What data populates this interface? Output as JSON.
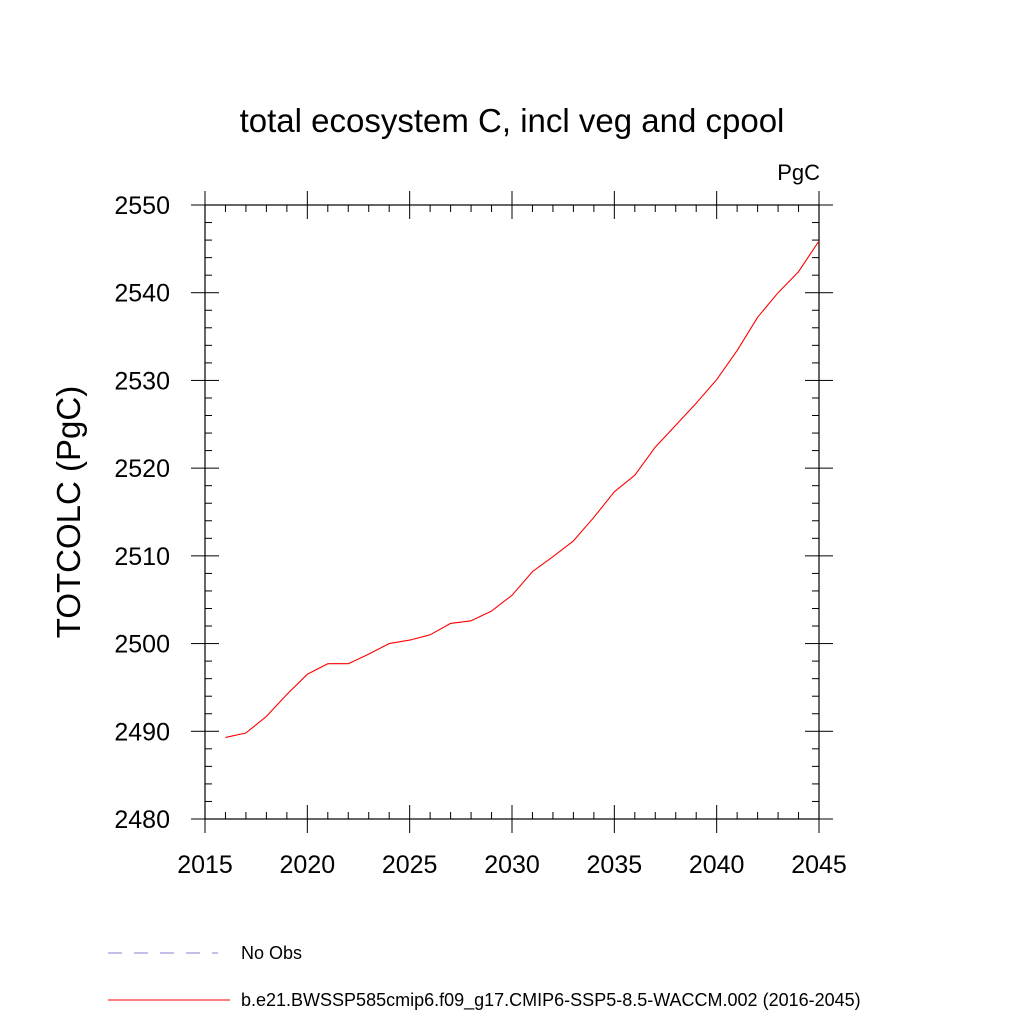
{
  "chart_data": {
    "type": "line",
    "title": "total ecosystem C, incl veg and cpool",
    "units": "PgC",
    "ylabel": "TOTCOLC  (PgC)",
    "xlabel": "",
    "xlim": [
      2015,
      2045
    ],
    "ylim": [
      2480,
      2550
    ],
    "xticks": [
      2015,
      2020,
      2025,
      2030,
      2035,
      2040,
      2045
    ],
    "yticks": [
      2480,
      2490,
      2500,
      2510,
      2520,
      2530,
      2540,
      2550
    ],
    "x": [
      2016,
      2017,
      2018,
      2019,
      2020,
      2021,
      2022,
      2023,
      2024,
      2025,
      2026,
      2027,
      2028,
      2029,
      2030,
      2031,
      2032,
      2033,
      2034,
      2035,
      2036,
      2037,
      2038,
      2039,
      2040,
      2041,
      2042,
      2043,
      2044,
      2045
    ],
    "series": [
      {
        "name": "b.e21.BWSSP585cmip6.f09_g17.CMIP6-SSP5-8.5-WACCM.002 (2016-2045)",
        "color": "#ff0000",
        "values": [
          2489.3,
          2489.8,
          2491.7,
          2494.2,
          2496.5,
          2497.7,
          2497.7,
          2498.8,
          2500.0,
          2500.4,
          2501.0,
          2502.3,
          2502.6,
          2503.7,
          2505.5,
          2508.2,
          2509.9,
          2511.7,
          2514.4,
          2517.3,
          2519.2,
          2522.4,
          2524.9,
          2527.4,
          2530.1,
          2533.4,
          2537.2,
          2540.0,
          2542.4,
          2545.9
        ]
      }
    ],
    "legend": [
      {
        "label": "No Obs",
        "style": "dashed",
        "color": "#8a7fcf"
      },
      {
        "label": "b.e21.BWSSP585cmip6.f09_g17.CMIP6-SSP5-8.5-WACCM.002 (2016-2045)",
        "style": "solid",
        "color": "#ff0000"
      }
    ]
  }
}
